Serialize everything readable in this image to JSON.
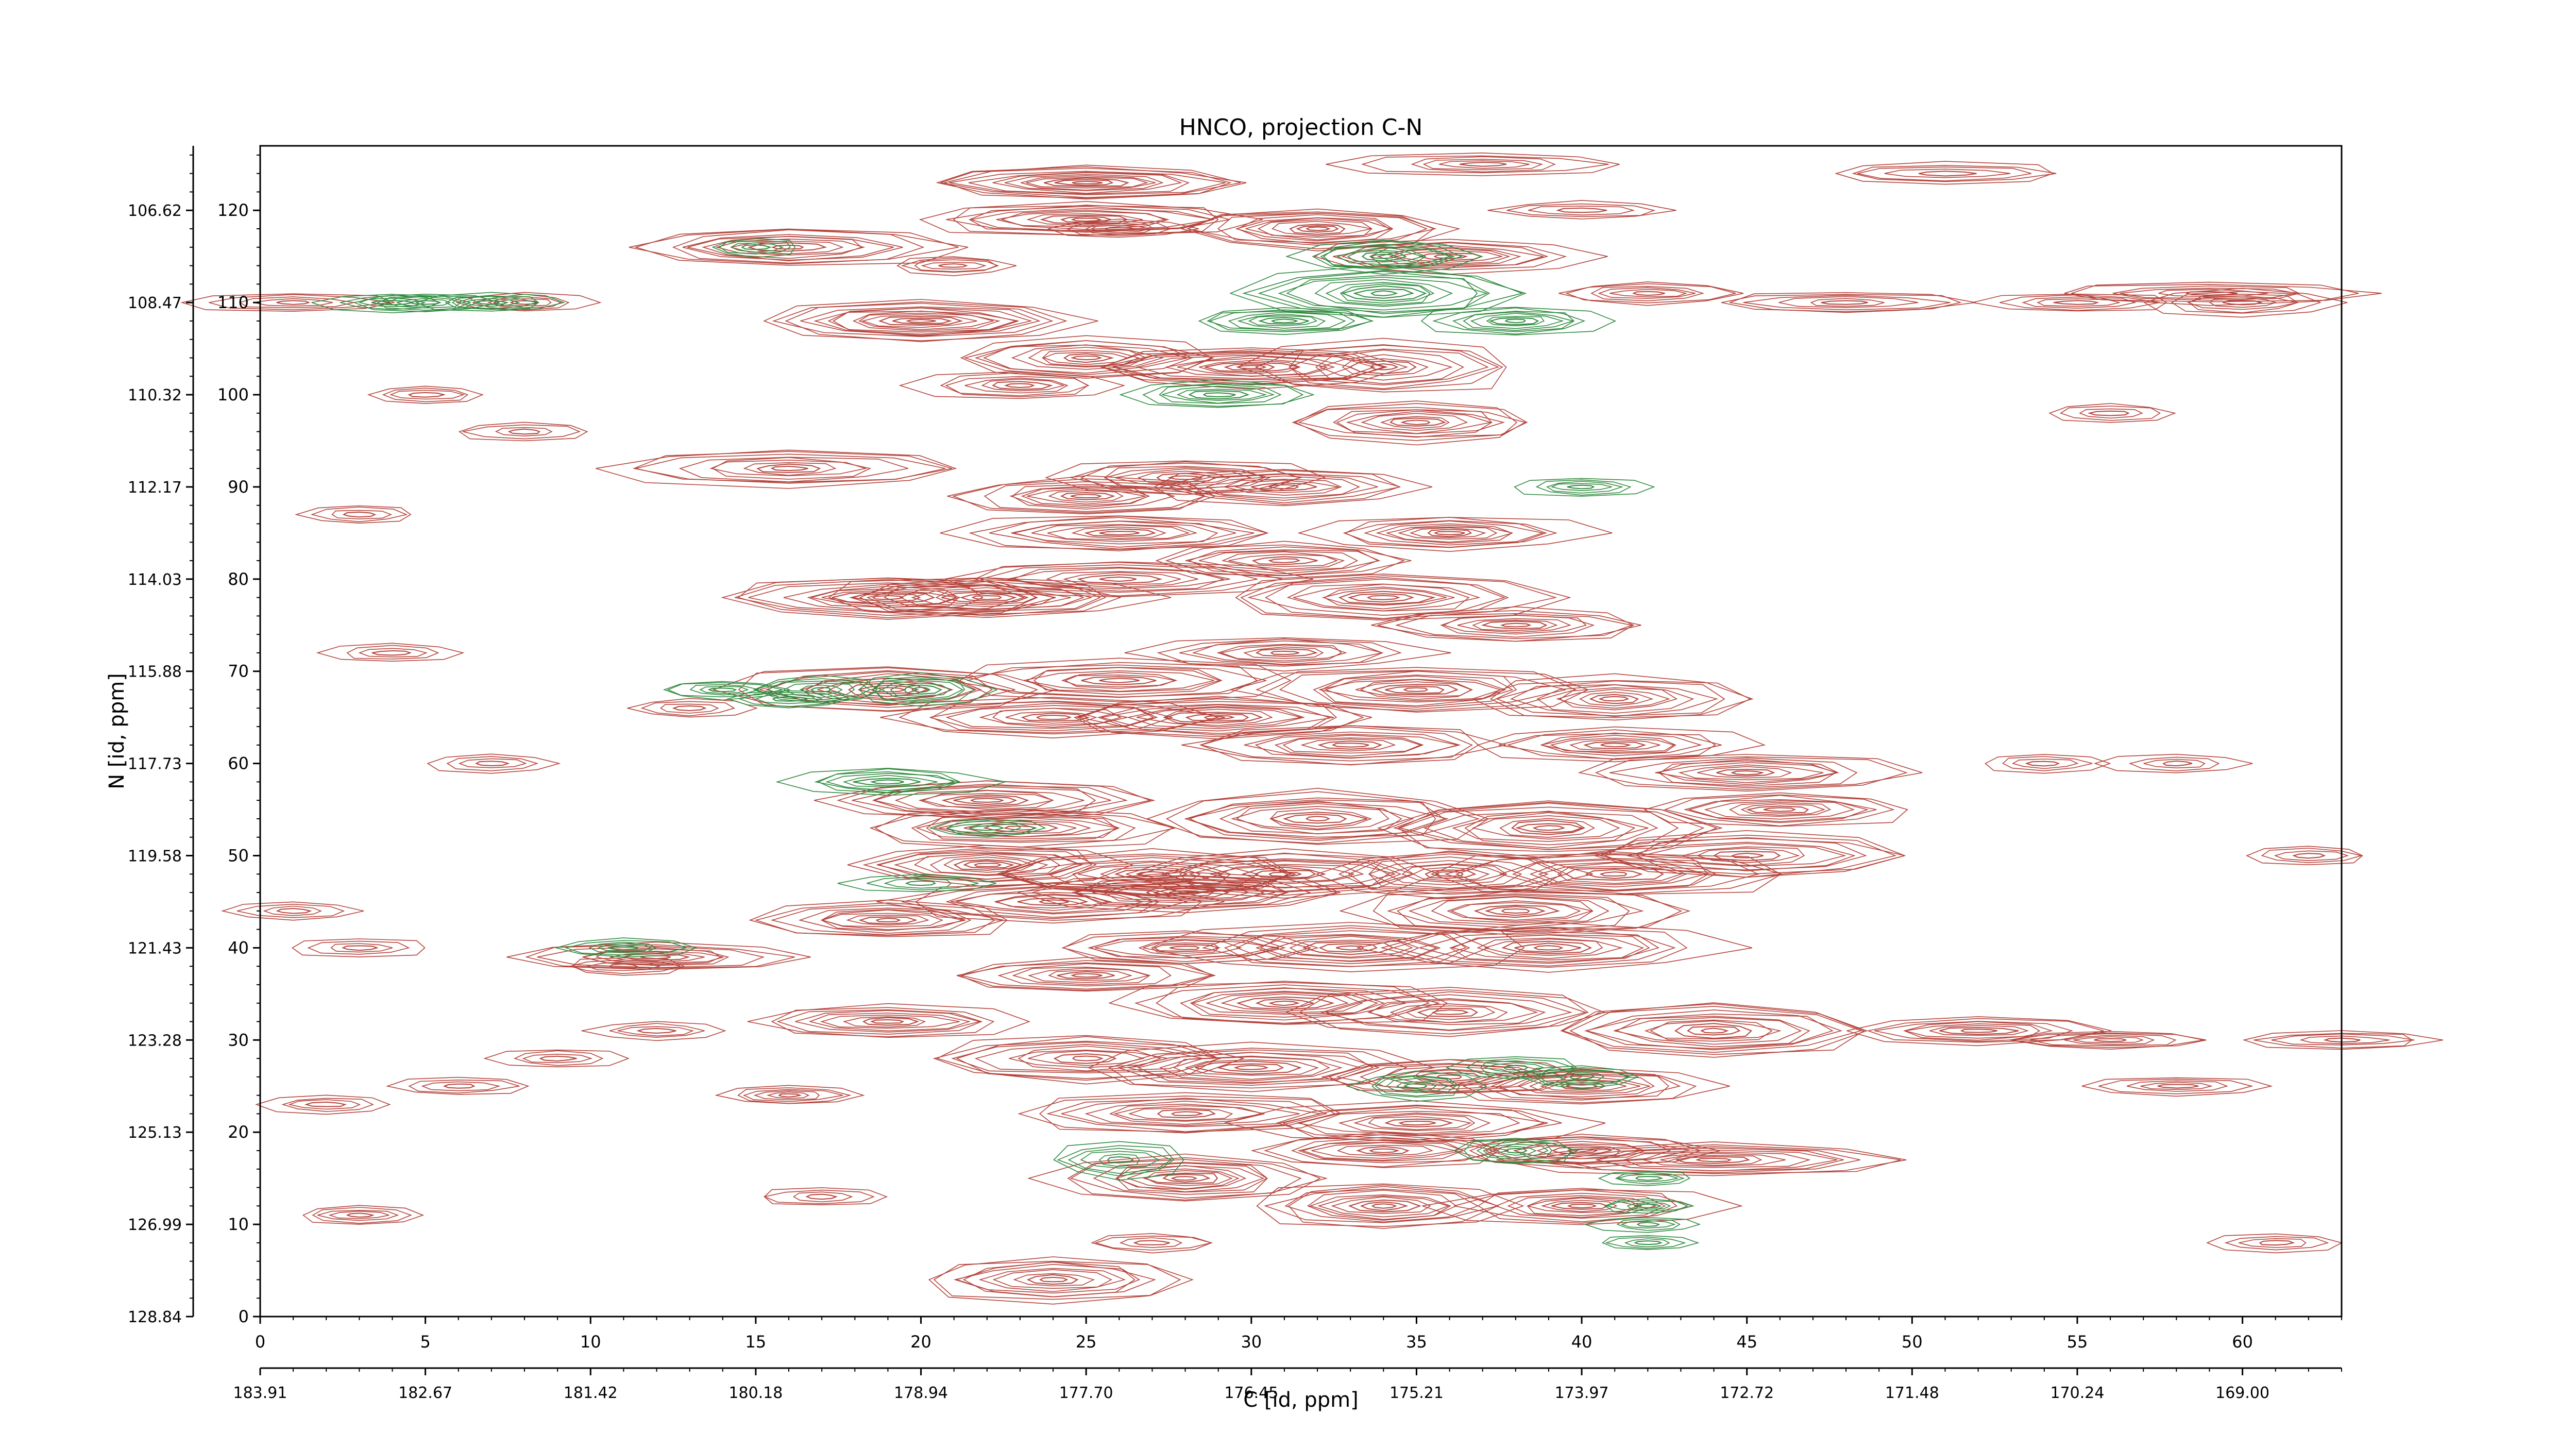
{
  "chart_data": {
    "type": "contour",
    "title": "HNCO, projection C-N",
    "xlabel": "C [id, ppm]",
    "ylabel": "N [id, ppm]",
    "xlim": [
      0,
      63
    ],
    "ylim": [
      0,
      127
    ],
    "bottom_axis_ticks": [
      "0",
      "5",
      "10",
      "15",
      "20",
      "25",
      "30",
      "35",
      "40",
      "45",
      "50",
      "55",
      "60"
    ],
    "bottom_axis_ppm_labels": [
      "183.91",
      "182.67",
      "181.42",
      "180.18",
      "178.94",
      "177.70",
      "176.45",
      "175.21",
      "173.97",
      "172.72",
      "171.48",
      "170.24",
      "169.00"
    ],
    "left_axis_ticks": [
      "0",
      "10",
      "20",
      "30",
      "40",
      "50",
      "60",
      "70",
      "80",
      "90",
      "100",
      "110",
      "120"
    ],
    "left_axis_ppm_labels": [
      "128.84",
      "126.99",
      "125.13",
      "123.28",
      "121.43",
      "119.58",
      "117.73",
      "115.88",
      "114.03",
      "112.17",
      "110.32",
      "108.47",
      "106.62"
    ],
    "colors": {
      "positive": "#b5443c",
      "negative": "#2f8a3e",
      "axis": "#000000"
    },
    "series": [
      {
        "peaks": [
          [
            25,
            123,
            5,
            1.8,
            12
          ],
          [
            25,
            119,
            5,
            1.8,
            11
          ],
          [
            16,
            116,
            5,
            2.2,
            10
          ],
          [
            32,
            118,
            4,
            2.2,
            12
          ],
          [
            36,
            115,
            4,
            1.8,
            9
          ],
          [
            20,
            108,
            5,
            2.2,
            13
          ],
          [
            25,
            104,
            4,
            2.2,
            10
          ],
          [
            30,
            103,
            5,
            2.2,
            12
          ],
          [
            34,
            103,
            4,
            3,
            9
          ],
          [
            35,
            97,
            4,
            2.2,
            10
          ],
          [
            16,
            92,
            5,
            2,
            9
          ],
          [
            25,
            89,
            4,
            2,
            10
          ],
          [
            28,
            91,
            4,
            2,
            9
          ],
          [
            31,
            90,
            4,
            2,
            9
          ],
          [
            26,
            85,
            5,
            2,
            10
          ],
          [
            36,
            85,
            4,
            1.8,
            10
          ],
          [
            31,
            82,
            4,
            2,
            9
          ],
          [
            26,
            80,
            5,
            2,
            9
          ],
          [
            19,
            78,
            5,
            2.2,
            11
          ],
          [
            22,
            78,
            5,
            2.2,
            11
          ],
          [
            34,
            78,
            5,
            2.5,
            11
          ],
          [
            38,
            75,
            4,
            1.8,
            9
          ],
          [
            31,
            72,
            4,
            1.8,
            9
          ],
          [
            35,
            68,
            5,
            2.5,
            12
          ],
          [
            19,
            68,
            5,
            2.5,
            11
          ],
          [
            26,
            69,
            5,
            2.2,
            10
          ],
          [
            41,
            67,
            4,
            2.5,
            10
          ],
          [
            24,
            65,
            5,
            2.2,
            10
          ],
          [
            29,
            65,
            5,
            2.2,
            11
          ],
          [
            33,
            62,
            5,
            2.2,
            10
          ],
          [
            41,
            62,
            4,
            1.8,
            9
          ],
          [
            45,
            59,
            5,
            2,
            10
          ],
          [
            22,
            56,
            5,
            2.2,
            11
          ],
          [
            23,
            53,
            5,
            2.2,
            10
          ],
          [
            46,
            55,
            4,
            1.8,
            9
          ],
          [
            32,
            54,
            5,
            3,
            12
          ],
          [
            39,
            53,
            5,
            3,
            12
          ],
          [
            45,
            50,
            5,
            2.5,
            10
          ],
          [
            22,
            49,
            4,
            2.2,
            11
          ],
          [
            27,
            48,
            5,
            2.5,
            10
          ],
          [
            31,
            48,
            5,
            2.5,
            11
          ],
          [
            36,
            48,
            4,
            2.5,
            10
          ],
          [
            41,
            48,
            5,
            2.5,
            11
          ],
          [
            24,
            45,
            5,
            2.2,
            10
          ],
          [
            28,
            46,
            5,
            2.2,
            11
          ],
          [
            19,
            43,
            4,
            2,
            10
          ],
          [
            38,
            44,
            5,
            2.5,
            11
          ],
          [
            12,
            39,
            4,
            1.5,
            9
          ],
          [
            28,
            40,
            4,
            1.8,
            9
          ],
          [
            33,
            40,
            5,
            2.5,
            11
          ],
          [
            39,
            40,
            5,
            2.5,
            11
          ],
          [
            25,
            37,
            4,
            1.8,
            9
          ],
          [
            31,
            34,
            5,
            2.5,
            11
          ],
          [
            36,
            33,
            5,
            2.5,
            10
          ],
          [
            19,
            32,
            4,
            1.8,
            9
          ],
          [
            44,
            31,
            5,
            3,
            12
          ],
          [
            52,
            31,
            4,
            1.5,
            8
          ],
          [
            25,
            28,
            5,
            2.5,
            10
          ],
          [
            30,
            27,
            5,
            2.5,
            11
          ],
          [
            36,
            26,
            4,
            2,
            9
          ],
          [
            40,
            25,
            4,
            2,
            10
          ],
          [
            28,
            22,
            5,
            2.2,
            10
          ],
          [
            35,
            21,
            5,
            2.2,
            10
          ],
          [
            44,
            17,
            6,
            1.8,
            10
          ],
          [
            34,
            18,
            4,
            1.8,
            9
          ],
          [
            40,
            18,
            4,
            1.8,
            9
          ],
          [
            28,
            15,
            4,
            2.5,
            12
          ],
          [
            34,
            12,
            4,
            2.5,
            11
          ],
          [
            40,
            12,
            4,
            2,
            10
          ],
          [
            24,
            4,
            4,
            2.5,
            10
          ],
          [
            16,
            24,
            2,
            1,
            6
          ],
          [
            3,
            11,
            2,
            1,
            5
          ],
          [
            2,
            23,
            2,
            1,
            4
          ],
          [
            23,
            101,
            3,
            1.5,
            7
          ],
          [
            8,
            110,
            2,
            1,
            5
          ],
          [
            1,
            110,
            3,
            1,
            5
          ],
          [
            60,
            110,
            3,
            1.5,
            6
          ],
          [
            59,
            111,
            5,
            1.2,
            6
          ],
          [
            42,
            111,
            3,
            1.2,
            6
          ],
          [
            21,
            114,
            2,
            1,
            5
          ],
          [
            26,
            118,
            2,
            1,
            5
          ],
          [
            54,
            60,
            2,
            1,
            4
          ],
          [
            56,
            30,
            3,
            1,
            6
          ],
          [
            58,
            25,
            3,
            1,
            5
          ],
          [
            4,
            72,
            2,
            1,
            4
          ],
          [
            3,
            87,
            2,
            1,
            4
          ],
          [
            48,
            110,
            4,
            1.2,
            6
          ],
          [
            55,
            110,
            3,
            1,
            5
          ],
          [
            40,
            120,
            3,
            1,
            4
          ],
          [
            37,
            125,
            4,
            1.2,
            6
          ],
          [
            51,
            124,
            4,
            1.2,
            5
          ],
          [
            17,
            13,
            2,
            1,
            4
          ],
          [
            27,
            8,
            2,
            1,
            4
          ],
          [
            56,
            98,
            2,
            1,
            4
          ],
          [
            61,
            8,
            2,
            1,
            4
          ],
          [
            13,
            66,
            2,
            1,
            4
          ],
          [
            9,
            28,
            2,
            1,
            4
          ],
          [
            6,
            25,
            2,
            1,
            4
          ],
          [
            12,
            31,
            2,
            1,
            4
          ],
          [
            5,
            100,
            2,
            1,
            4
          ],
          [
            8,
            96,
            2,
            1,
            4
          ],
          [
            63,
            30,
            3,
            1,
            5
          ],
          [
            62,
            50,
            2,
            1,
            4
          ],
          [
            58,
            60,
            2,
            1,
            4
          ],
          [
            7,
            60,
            2,
            1,
            4
          ],
          [
            11,
            38,
            2,
            1,
            4
          ],
          [
            3,
            40,
            2,
            1,
            4
          ],
          [
            1,
            44,
            2,
            1,
            4
          ]
        ]
      },
      {
        "peaks": [
          [
            34,
            111,
            4,
            2.8,
            11
          ],
          [
            34,
            115,
            3,
            1.8,
            8
          ],
          [
            38,
            108,
            3,
            1.5,
            8
          ],
          [
            31,
            108,
            3,
            1.5,
            8
          ],
          [
            29,
            100,
            3,
            1.5,
            7
          ],
          [
            20,
            68,
            2,
            1.8,
            7
          ],
          [
            17,
            68,
            2,
            1.5,
            6
          ],
          [
            14,
            68,
            2,
            1,
            5
          ],
          [
            19,
            58,
            3,
            1.5,
            7
          ],
          [
            7,
            110,
            2,
            1,
            5
          ],
          [
            5,
            110,
            2,
            1,
            5
          ],
          [
            4,
            110,
            2,
            1,
            4
          ],
          [
            15,
            116,
            1.5,
            1,
            4
          ],
          [
            35,
            25,
            2,
            1.5,
            6
          ],
          [
            38,
            27,
            2,
            1.2,
            5
          ],
          [
            40,
            26,
            2,
            1.2,
            5
          ],
          [
            38,
            18,
            2,
            1.5,
            6
          ],
          [
            26,
            17,
            2,
            2,
            6
          ],
          [
            42,
            15,
            1.5,
            0.8,
            4
          ],
          [
            42,
            12,
            1.5,
            0.8,
            4
          ],
          [
            42,
            10,
            1.5,
            0.8,
            4
          ],
          [
            42,
            8,
            1.5,
            0.8,
            4
          ],
          [
            40,
            90,
            2,
            1,
            5
          ],
          [
            11,
            40,
            2,
            1,
            5
          ],
          [
            16,
            67,
            2,
            1,
            4
          ],
          [
            20,
            47,
            2,
            1,
            4
          ],
          [
            22,
            53,
            2,
            1,
            4
          ]
        ]
      }
    ]
  }
}
